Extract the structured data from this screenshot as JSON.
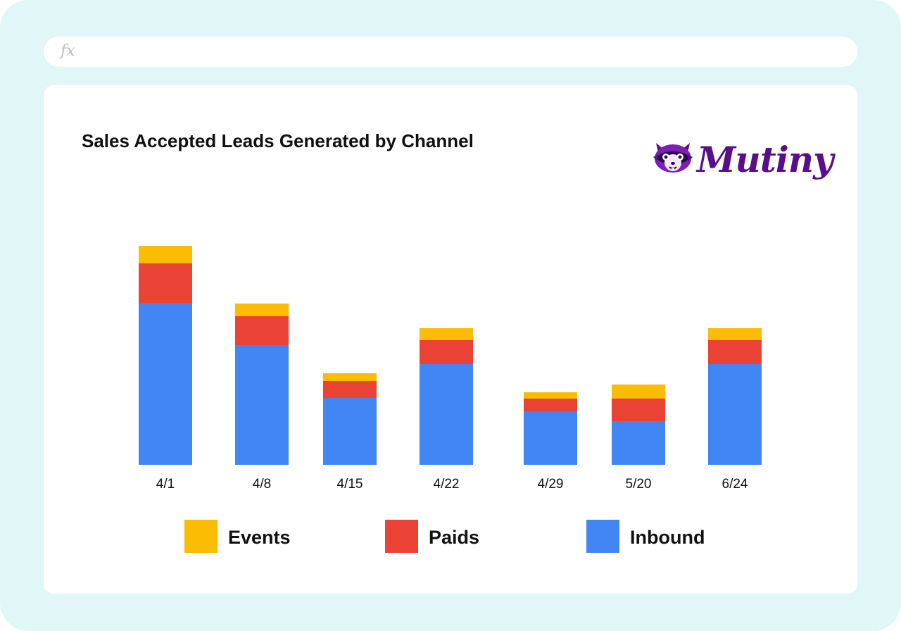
{
  "formula_bar": {
    "icon": "fx-icon",
    "label": "fx"
  },
  "brand": {
    "name": "Mutiny",
    "color": "#5a0e8a"
  },
  "chart_data": {
    "type": "bar",
    "stacked": true,
    "title": "Sales Accepted Leads Generated by Channel",
    "xlabel": "",
    "ylabel": "",
    "categories": [
      "4/1",
      "4/8",
      "4/15",
      "4/22",
      "4/29",
      "5/20",
      "6/24"
    ],
    "series": [
      {
        "name": "Inbound",
        "color": "#4285f4",
        "values": [
          230,
          170,
          95,
          143,
          76,
          62,
          143
        ]
      },
      {
        "name": "Paids",
        "color": "#ea4335",
        "values": [
          56,
          41,
          24,
          34,
          18,
          32,
          34
        ]
      },
      {
        "name": "Events",
        "color": "#fbbc04",
        "values": [
          25,
          18,
          11,
          17,
          9,
          20,
          17
        ]
      }
    ],
    "legend": {
      "placement": "bottom",
      "order": [
        "Events",
        "Paids",
        "Inbound"
      ]
    },
    "grid": false,
    "ylim": [
      0,
      311
    ]
  }
}
